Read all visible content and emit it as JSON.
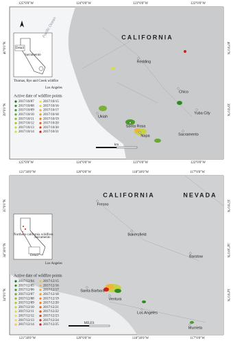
{
  "panels": [
    {
      "lon_labels": [
        "125°0'0\"W",
        "124°0'0\"W",
        "123°0'0\"W",
        "122°0'0\"W"
      ],
      "lat_labels": [
        "40°0'0\"N",
        "39°0'0\"N"
      ],
      "places": [
        "CALIFORNIA",
        "Redding",
        "Chico",
        "Yuba City",
        "Ukiah",
        "Santa Rosa",
        "Napa",
        "Sacramento",
        "Pacific Ocean"
      ],
      "inset": {
        "detail": "Detail",
        "city_north": "Sacramento",
        "note": "Thomas, Rye and Creek wildfire",
        "city_south": "Los Angeles"
      },
      "legend": {
        "title": "Active date of wildfire points",
        "items": [
          {
            "label": "2017/10/07",
            "color": "#1a7a1a"
          },
          {
            "label": "2017/10/08",
            "color": "#2e8b22"
          },
          {
            "label": "2017/10/09",
            "color": "#4a9a2a"
          },
          {
            "label": "2017/10/10",
            "color": "#69a832"
          },
          {
            "label": "2017/10/11",
            "color": "#8ab83a"
          },
          {
            "label": "2017/10/12",
            "color": "#a8c540"
          },
          {
            "label": "2017/10/13",
            "color": "#c5d246"
          },
          {
            "label": "2017/10/14",
            "color": "#dcdc4a"
          },
          {
            "label": "2017/10/15",
            "color": "#eede4c"
          },
          {
            "label": "2017/10/16",
            "color": "#f2cc44"
          },
          {
            "label": "2017/10/17",
            "color": "#f0b43c"
          },
          {
            "label": "2017/10/18",
            "color": "#ec9a34"
          },
          {
            "label": "2017/10/19",
            "color": "#e6802c"
          },
          {
            "label": "2017/10/20",
            "color": "#e06426"
          },
          {
            "label": "2017/10/30",
            "color": "#d84420"
          },
          {
            "label": "2017/10/31",
            "color": "#cc201a"
          }
        ]
      },
      "scale_label": "km"
    },
    {
      "lon_labels": [
        "121°30'0\"W",
        "120°0'0\"W",
        "118°30'0\"W",
        "117°0'0\"W"
      ],
      "lat_labels": [
        "35°0'0\"N",
        "34°30'0\"N",
        "34°0'0\"N"
      ],
      "places": [
        "CALIFORNIA",
        "NEVADA",
        "Fresno",
        "Bakersfield",
        "Barstow",
        "Santa Barbara",
        "Ventura",
        "Los Angeles",
        "Murrieta"
      ],
      "inset": {
        "detail": "Detail",
        "city_north": "Sacramento",
        "note": "Northern california wildfires",
        "city_south": "Los Angeles"
      },
      "legend": {
        "title": "Active date of wildfire points",
        "items": [
          {
            "label": "2017/12/04",
            "color": "#1a7a1a"
          },
          {
            "label": "2017/12/05",
            "color": "#2e8b22"
          },
          {
            "label": "2017/12/06",
            "color": "#4a9a2a"
          },
          {
            "label": "2017/12/07",
            "color": "#69a832"
          },
          {
            "label": "2017/12/08",
            "color": "#8ab83a"
          },
          {
            "label": "2017/12/09",
            "color": "#a8c540"
          },
          {
            "label": "2017/12/10",
            "color": "#c5d246"
          },
          {
            "label": "2017/12/11",
            "color": "#dcdc4a"
          },
          {
            "label": "2017/12/12",
            "color": "#eede4c"
          },
          {
            "label": "2017/12/13",
            "color": "#f2d846"
          },
          {
            "label": "2017/12/14",
            "color": "#f2cc44"
          },
          {
            "label": "2017/12/15",
            "color": "#f0be40"
          },
          {
            "label": "2017/12/16",
            "color": "#f0b43c"
          },
          {
            "label": "2017/12/17",
            "color": "#eea638"
          },
          {
            "label": "2017/12/18",
            "color": "#ec9a34"
          },
          {
            "label": "2017/12/19",
            "color": "#e98c30"
          },
          {
            "label": "2017/12/20",
            "color": "#e6802c"
          },
          {
            "label": "2017/12/21",
            "color": "#e06426"
          },
          {
            "label": "2017/12/22",
            "color": "#dc5622"
          },
          {
            "label": "2017/12/23",
            "color": "#d84420"
          },
          {
            "label": "2017/12/24",
            "color": "#d2321c"
          },
          {
            "label": "2017/12/25",
            "color": "#cc201a"
          }
        ]
      },
      "scale_label": "MILES"
    }
  ]
}
